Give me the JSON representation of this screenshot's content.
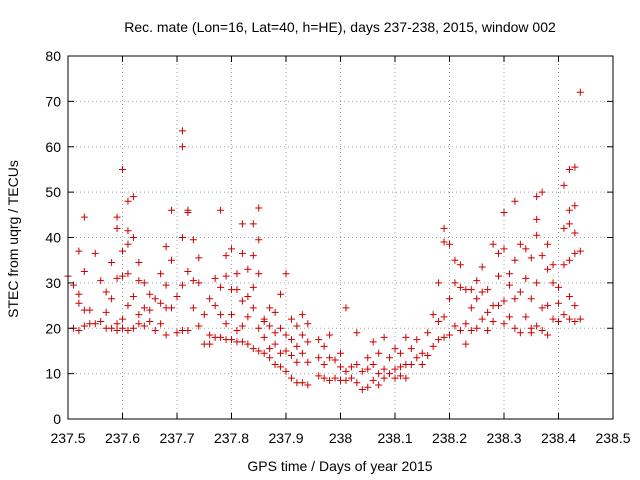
{
  "chart_data": {
    "type": "scatter",
    "title": "Rec. mate (Lon=16, Lat=40, h=HE), days 237-238, 2015, window 002",
    "xlabel": "GPS time / Days of year 2015",
    "ylabel": "STEC from uqrg / TECUs",
    "xlim": [
      237.5,
      238.5
    ],
    "ylim": [
      0,
      80
    ],
    "xticks": [
      237.5,
      237.6,
      237.7,
      237.8,
      237.9,
      238.0,
      238.1,
      238.2,
      238.3,
      238.4,
      238.5
    ],
    "xtick_labels": [
      "237.5",
      "237.6",
      "237.7",
      "237.8",
      "237.9",
      "238",
      "238.1",
      "238.2",
      "238.3",
      "238.4",
      "238.5"
    ],
    "yticks": [
      0,
      10,
      20,
      30,
      40,
      50,
      60,
      70,
      80
    ],
    "ytick_labels": [
      "0",
      "10",
      "20",
      "30",
      "40",
      "50",
      "60",
      "70",
      "80"
    ],
    "grid": true,
    "marker": "+",
    "color": "#cc0000",
    "points": [
      [
        237.5,
        31.5
      ],
      [
        237.51,
        29.5
      ],
      [
        237.51,
        20.0
      ],
      [
        237.52,
        37.0
      ],
      [
        237.52,
        27.5
      ],
      [
        237.52,
        25.5
      ],
      [
        237.52,
        19.5
      ],
      [
        237.53,
        44.5
      ],
      [
        237.53,
        32.5
      ],
      [
        237.53,
        24.0
      ],
      [
        237.53,
        20.5
      ],
      [
        237.54,
        21.0
      ],
      [
        237.54,
        24.0
      ],
      [
        237.55,
        36.5
      ],
      [
        237.55,
        21.0
      ],
      [
        237.56,
        30.5
      ],
      [
        237.56,
        21.5
      ],
      [
        237.57,
        28.0
      ],
      [
        237.57,
        20.0
      ],
      [
        237.57,
        23.5
      ],
      [
        237.58,
        34.5
      ],
      [
        237.58,
        26.5
      ],
      [
        237.58,
        20.0
      ],
      [
        237.59,
        44.5
      ],
      [
        237.59,
        42.0
      ],
      [
        237.59,
        31.0
      ],
      [
        237.59,
        21.0
      ],
      [
        237.59,
        19.5
      ],
      [
        237.6,
        55.0
      ],
      [
        237.6,
        37.0
      ],
      [
        237.6,
        31.5
      ],
      [
        237.6,
        22.0
      ],
      [
        237.6,
        20.0
      ],
      [
        237.61,
        48.0
      ],
      [
        237.61,
        41.5
      ],
      [
        237.61,
        38.5
      ],
      [
        237.61,
        32.0
      ],
      [
        237.61,
        25.0
      ],
      [
        237.61,
        19.5
      ],
      [
        237.62,
        49.0
      ],
      [
        237.62,
        40.0
      ],
      [
        237.62,
        27.0
      ],
      [
        237.62,
        20.0
      ],
      [
        237.63,
        34.5
      ],
      [
        237.63,
        30.5
      ],
      [
        237.63,
        21.0
      ],
      [
        237.63,
        23.0
      ],
      [
        237.64,
        30.0
      ],
      [
        237.64,
        24.5
      ],
      [
        237.64,
        20.5
      ],
      [
        237.65,
        27.5
      ],
      [
        237.65,
        24.0
      ],
      [
        237.65,
        21.5
      ],
      [
        237.66,
        26.5
      ],
      [
        237.66,
        19.5
      ],
      [
        237.67,
        32.0
      ],
      [
        237.67,
        25.5
      ],
      [
        237.67,
        21.0
      ],
      [
        237.68,
        38.0
      ],
      [
        237.68,
        29.5
      ],
      [
        237.68,
        24.5
      ],
      [
        237.68,
        18.5
      ],
      [
        237.69,
        46.0
      ],
      [
        237.69,
        35.0
      ],
      [
        237.69,
        24.5
      ],
      [
        237.7,
        27.0
      ],
      [
        237.7,
        19.0
      ],
      [
        237.71,
        63.5
      ],
      [
        237.71,
        60.0
      ],
      [
        237.71,
        40.0
      ],
      [
        237.71,
        29.5
      ],
      [
        237.71,
        19.5
      ],
      [
        237.72,
        46.0
      ],
      [
        237.72,
        45.5
      ],
      [
        237.72,
        32.5
      ],
      [
        237.72,
        19.5
      ],
      [
        237.73,
        39.5
      ],
      [
        237.73,
        30.5
      ],
      [
        237.73,
        24.5
      ],
      [
        237.74,
        35.5
      ],
      [
        237.74,
        20.5
      ],
      [
        237.74,
        30.0
      ],
      [
        237.75,
        16.5
      ],
      [
        237.75,
        23.0
      ],
      [
        237.76,
        26.5
      ],
      [
        237.76,
        18.5
      ],
      [
        237.76,
        16.5
      ],
      [
        237.77,
        31.0
      ],
      [
        237.77,
        25.0
      ],
      [
        237.77,
        18.0
      ],
      [
        237.78,
        46.0
      ],
      [
        237.78,
        29.0
      ],
      [
        237.78,
        23.0
      ],
      [
        237.78,
        18.0
      ],
      [
        237.79,
        36.0
      ],
      [
        237.79,
        31.5
      ],
      [
        237.79,
        21.0
      ],
      [
        237.79,
        17.5
      ],
      [
        237.8,
        37.5
      ],
      [
        237.8,
        28.5
      ],
      [
        237.8,
        23.0
      ],
      [
        237.8,
        17.5
      ],
      [
        237.81,
        32.0
      ],
      [
        237.81,
        28.5
      ],
      [
        237.81,
        19.5
      ],
      [
        237.81,
        17.0
      ],
      [
        237.82,
        43.0
      ],
      [
        237.82,
        36.5
      ],
      [
        237.82,
        26.0
      ],
      [
        237.82,
        20.5
      ],
      [
        237.82,
        17.0
      ],
      [
        237.83,
        33.0
      ],
      [
        237.83,
        27.0
      ],
      [
        237.83,
        22.5
      ],
      [
        237.83,
        16.5
      ],
      [
        237.84,
        36.0
      ],
      [
        237.84,
        43.0
      ],
      [
        237.84,
        29.0
      ],
      [
        237.84,
        24.5
      ],
      [
        237.84,
        15.5
      ],
      [
        237.85,
        46.5
      ],
      [
        237.85,
        39.5
      ],
      [
        237.85,
        32.0
      ],
      [
        237.85,
        20.0
      ],
      [
        237.85,
        15.0
      ],
      [
        237.86,
        22.0
      ],
      [
        237.86,
        21.5
      ],
      [
        237.86,
        18.0
      ],
      [
        237.86,
        14.5
      ],
      [
        237.87,
        24.5
      ],
      [
        237.87,
        20.5
      ],
      [
        237.87,
        15.5
      ],
      [
        237.87,
        13.5
      ],
      [
        237.88,
        23.5
      ],
      [
        237.88,
        19.0
      ],
      [
        237.88,
        16.5
      ],
      [
        237.88,
        12.0
      ],
      [
        237.89,
        27.5
      ],
      [
        237.89,
        20.0
      ],
      [
        237.89,
        14.5
      ],
      [
        237.89,
        11.5
      ],
      [
        237.9,
        32.0
      ],
      [
        237.9,
        18.5
      ],
      [
        237.9,
        15.0
      ],
      [
        237.9,
        10.5
      ],
      [
        237.91,
        22.0
      ],
      [
        237.91,
        17.5
      ],
      [
        237.91,
        14.0
      ],
      [
        237.91,
        9.0
      ],
      [
        237.92,
        20.5
      ],
      [
        237.92,
        16.0
      ],
      [
        237.92,
        12.5
      ],
      [
        237.92,
        8.0
      ],
      [
        237.93,
        23.0
      ],
      [
        237.93,
        18.5
      ],
      [
        237.93,
        14.5
      ],
      [
        237.93,
        8.0
      ],
      [
        237.94,
        21.0
      ],
      [
        237.94,
        17.0
      ],
      [
        237.94,
        12.5
      ],
      [
        237.94,
        7.5
      ],
      [
        237.96,
        17.5
      ],
      [
        237.96,
        13.5
      ],
      [
        237.96,
        9.5
      ],
      [
        237.97,
        16.0
      ],
      [
        237.97,
        12.0
      ],
      [
        237.97,
        9.0
      ],
      [
        237.98,
        18.5
      ],
      [
        237.98,
        13.5
      ],
      [
        237.98,
        8.5
      ],
      [
        237.99,
        13.0
      ],
      [
        237.99,
        9.0
      ],
      [
        238.0,
        14.5
      ],
      [
        238.0,
        11.5
      ],
      [
        238.0,
        8.5
      ],
      [
        238.01,
        24.5
      ],
      [
        238.01,
        10.5
      ],
      [
        238.01,
        8.5
      ],
      [
        238.02,
        11.5
      ],
      [
        238.02,
        9.0
      ],
      [
        238.03,
        19.0
      ],
      [
        238.03,
        12.0
      ],
      [
        238.03,
        8.0
      ],
      [
        238.04,
        10.5
      ],
      [
        238.04,
        6.5
      ],
      [
        238.05,
        13.5
      ],
      [
        238.05,
        11.0
      ],
      [
        238.05,
        7.0
      ],
      [
        238.06,
        17.0
      ],
      [
        238.06,
        12.0
      ],
      [
        238.06,
        8.5
      ],
      [
        238.07,
        14.5
      ],
      [
        238.07,
        10.0
      ],
      [
        238.07,
        7.5
      ],
      [
        238.08,
        18.0
      ],
      [
        238.08,
        11.0
      ],
      [
        238.08,
        9.0
      ],
      [
        238.09,
        13.5
      ],
      [
        238.09,
        10.0
      ],
      [
        238.1,
        15.5
      ],
      [
        238.1,
        11.0
      ],
      [
        238.1,
        9.0
      ],
      [
        238.11,
        14.5
      ],
      [
        238.11,
        11.5
      ],
      [
        238.11,
        9.5
      ],
      [
        238.12,
        18.0
      ],
      [
        238.12,
        12.0
      ],
      [
        238.12,
        9.0
      ],
      [
        238.13,
        15.5
      ],
      [
        238.13,
        12.0
      ],
      [
        238.14,
        17.5
      ],
      [
        238.14,
        13.5
      ],
      [
        238.15,
        14.5
      ],
      [
        238.15,
        12.0
      ],
      [
        238.16,
        19.0
      ],
      [
        238.16,
        14.0
      ],
      [
        238.17,
        23.0
      ],
      [
        238.17,
        16.0
      ],
      [
        238.18,
        30.0
      ],
      [
        238.18,
        21.5
      ],
      [
        238.18,
        17.5
      ],
      [
        238.19,
        42.0
      ],
      [
        238.19,
        39.0
      ],
      [
        238.19,
        22.5
      ],
      [
        238.19,
        18.0
      ],
      [
        238.2,
        38.5
      ],
      [
        238.2,
        26.5
      ],
      [
        238.2,
        18.5
      ],
      [
        238.21,
        35.0
      ],
      [
        238.21,
        30.0
      ],
      [
        238.21,
        20.5
      ],
      [
        238.22,
        34.0
      ],
      [
        238.22,
        29.0
      ],
      [
        238.22,
        19.5
      ],
      [
        238.23,
        28.5
      ],
      [
        238.23,
        21.0
      ],
      [
        238.23,
        16.5
      ],
      [
        238.24,
        28.5
      ],
      [
        238.24,
        24.5
      ],
      [
        238.24,
        19.5
      ],
      [
        238.25,
        30.5
      ],
      [
        238.25,
        26.5
      ],
      [
        238.25,
        20.0
      ],
      [
        238.26,
        33.5
      ],
      [
        238.26,
        28.0
      ],
      [
        238.26,
        22.0
      ],
      [
        238.27,
        28.5
      ],
      [
        238.27,
        23.5
      ],
      [
        238.27,
        19.5
      ],
      [
        238.28,
        38.5
      ],
      [
        238.28,
        25.0
      ],
      [
        238.28,
        21.5
      ],
      [
        238.29,
        36.5
      ],
      [
        238.29,
        31.5
      ],
      [
        238.29,
        25.0
      ],
      [
        238.3,
        45.5
      ],
      [
        238.3,
        37.5
      ],
      [
        238.3,
        26.0
      ],
      [
        238.3,
        21.0
      ],
      [
        238.31,
        32.0
      ],
      [
        238.31,
        29.5
      ],
      [
        238.31,
        22.5
      ],
      [
        238.32,
        48.0
      ],
      [
        238.32,
        35.0
      ],
      [
        238.32,
        26.5
      ],
      [
        238.32,
        20.0
      ],
      [
        238.33,
        38.5
      ],
      [
        238.33,
        28.0
      ],
      [
        238.33,
        19.0
      ],
      [
        238.34,
        37.5
      ],
      [
        238.34,
        31.0
      ],
      [
        238.34,
        22.5
      ],
      [
        238.35,
        35.5
      ],
      [
        238.35,
        26.5
      ],
      [
        238.35,
        20.0
      ],
      [
        238.35,
        19.0
      ],
      [
        238.36,
        49.0
      ],
      [
        238.36,
        44.0
      ],
      [
        238.36,
        40.5
      ],
      [
        238.36,
        30.0
      ],
      [
        238.36,
        20.5
      ],
      [
        238.37,
        50.0
      ],
      [
        238.37,
        36.0
      ],
      [
        238.37,
        24.5
      ],
      [
        238.37,
        19.5
      ],
      [
        238.38,
        38.5
      ],
      [
        238.38,
        33.0
      ],
      [
        238.38,
        25.0
      ],
      [
        238.38,
        18.5
      ],
      [
        238.39,
        34.0
      ],
      [
        238.39,
        30.0
      ],
      [
        238.39,
        22.0
      ],
      [
        238.4,
        29.0
      ],
      [
        238.4,
        25.5
      ],
      [
        238.4,
        21.5
      ],
      [
        238.41,
        51.5
      ],
      [
        238.41,
        42.0
      ],
      [
        238.41,
        34.0
      ],
      [
        238.41,
        23.0
      ],
      [
        238.42,
        55.0
      ],
      [
        238.42,
        46.0
      ],
      [
        238.42,
        43.0
      ],
      [
        238.42,
        35.0
      ],
      [
        238.42,
        27.0
      ],
      [
        238.42,
        22.0
      ],
      [
        238.43,
        55.5
      ],
      [
        238.43,
        47.0
      ],
      [
        238.43,
        41.0
      ],
      [
        238.43,
        36.5
      ],
      [
        238.43,
        25.0
      ],
      [
        238.43,
        21.5
      ],
      [
        238.44,
        72.0
      ],
      [
        238.44,
        37.0
      ],
      [
        238.44,
        22.0
      ]
    ]
  }
}
